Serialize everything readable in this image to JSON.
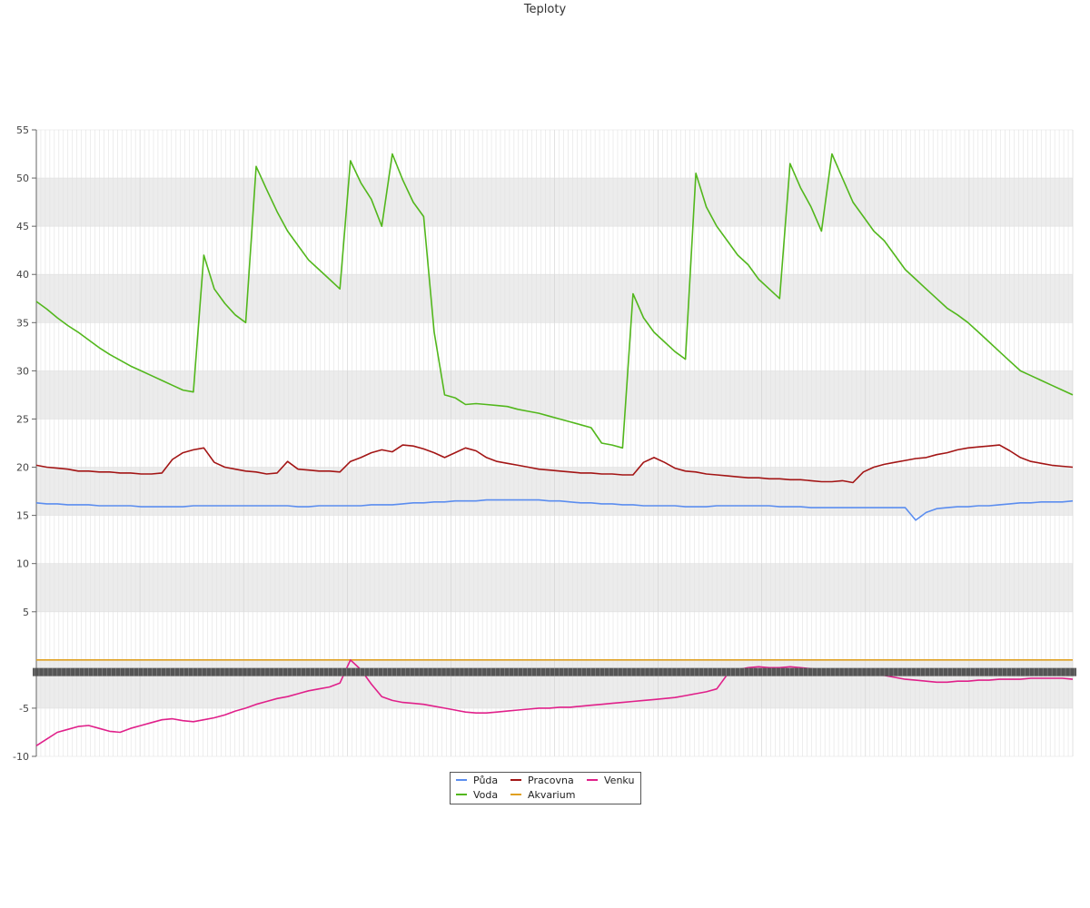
{
  "chart_data": {
    "type": "line",
    "title": "Teploty",
    "xlabel": "",
    "ylabel": "",
    "ylim": [
      -10,
      55
    ],
    "yticks": [
      55,
      50,
      45,
      40,
      35,
      30,
      25,
      20,
      15,
      10,
      5,
      -5,
      -10
    ],
    "grid": true,
    "legend_position": "bottom-center",
    "x_points": 100,
    "series": [
      {
        "name": "Půda",
        "color": "#5b8def",
        "values": [
          16.3,
          16.2,
          16.2,
          16.1,
          16.1,
          16.1,
          16.0,
          16.0,
          16.0,
          16.0,
          15.9,
          15.9,
          15.9,
          15.9,
          15.9,
          16.0,
          16.0,
          16.0,
          16.0,
          16.0,
          16.0,
          16.0,
          16.0,
          16.0,
          16.0,
          15.9,
          15.9,
          16.0,
          16.0,
          16.0,
          16.0,
          16.0,
          16.1,
          16.1,
          16.1,
          16.2,
          16.3,
          16.3,
          16.4,
          16.4,
          16.5,
          16.5,
          16.5,
          16.6,
          16.6,
          16.6,
          16.6,
          16.6,
          16.6,
          16.5,
          16.5,
          16.4,
          16.3,
          16.3,
          16.2,
          16.2,
          16.1,
          16.1,
          16.0,
          16.0,
          16.0,
          16.0,
          15.9,
          15.9,
          15.9,
          16.0,
          16.0,
          16.0,
          16.0,
          16.0,
          16.0,
          15.9,
          15.9,
          15.9,
          15.8,
          15.8,
          15.8,
          15.8,
          15.8,
          15.8,
          15.8,
          15.8,
          15.8,
          15.8,
          14.5,
          15.3,
          15.7,
          15.8,
          15.9,
          15.9,
          16.0,
          16.0,
          16.1,
          16.2,
          16.3,
          16.3,
          16.4,
          16.4,
          16.4,
          16.5
        ]
      },
      {
        "name": "Voda",
        "color": "#52b71c",
        "values": [
          37.2,
          36.4,
          35.5,
          34.7,
          34.0,
          33.2,
          32.4,
          31.7,
          31.1,
          30.5,
          30.0,
          29.5,
          29.0,
          28.5,
          28.0,
          27.8,
          42.0,
          38.5,
          37.0,
          35.8,
          35.0,
          51.2,
          48.8,
          46.5,
          44.5,
          43.0,
          41.5,
          40.5,
          39.5,
          38.5,
          51.8,
          49.5,
          47.8,
          45.0,
          52.5,
          49.8,
          47.5,
          46.0,
          34.0,
          27.5,
          27.2,
          26.5,
          26.6,
          26.5,
          26.4,
          26.3,
          26.0,
          25.8,
          25.6,
          25.3,
          25.0,
          24.7,
          24.4,
          24.1,
          22.5,
          22.3,
          22.0,
          38.0,
          35.5,
          34.0,
          33.0,
          32.0,
          31.2,
          50.5,
          47.0,
          45.0,
          43.5,
          42.0,
          41.0,
          39.5,
          38.5,
          37.5,
          51.5,
          49.0,
          47.0,
          44.5,
          52.5,
          50.0,
          47.5,
          46.0,
          44.5,
          43.5,
          42.0,
          40.5,
          39.5,
          38.5,
          37.5,
          36.5,
          35.8,
          35.0,
          34.0,
          33.0,
          32.0,
          31.0,
          30.0,
          29.5,
          29.0,
          28.5,
          28.0,
          27.5
        ]
      },
      {
        "name": "Pracovna",
        "color": "#a31515",
        "values": [
          20.2,
          20.0,
          19.9,
          19.8,
          19.6,
          19.6,
          19.5,
          19.5,
          19.4,
          19.4,
          19.3,
          19.3,
          19.4,
          20.8,
          21.5,
          21.8,
          22.0,
          20.5,
          20.0,
          19.8,
          19.6,
          19.5,
          19.3,
          19.4,
          20.6,
          19.8,
          19.7,
          19.6,
          19.6,
          19.5,
          20.6,
          21.0,
          21.5,
          21.8,
          21.6,
          22.3,
          22.2,
          21.9,
          21.5,
          21.0,
          21.5,
          22.0,
          21.7,
          21.0,
          20.6,
          20.4,
          20.2,
          20.0,
          19.8,
          19.7,
          19.6,
          19.5,
          19.4,
          19.4,
          19.3,
          19.3,
          19.2,
          19.2,
          20.5,
          21.0,
          20.5,
          19.9,
          19.6,
          19.5,
          19.3,
          19.2,
          19.1,
          19.0,
          18.9,
          18.9,
          18.8,
          18.8,
          18.7,
          18.7,
          18.6,
          18.5,
          18.5,
          18.6,
          18.4,
          19.5,
          20.0,
          20.3,
          20.5,
          20.7,
          20.9,
          21.0,
          21.3,
          21.5,
          21.8,
          22.0,
          22.1,
          22.2,
          22.3,
          21.7,
          21.0,
          20.6,
          20.4,
          20.2,
          20.1,
          20.0
        ]
      },
      {
        "name": "Akvarium",
        "color": "#e0a020",
        "values": [
          0,
          0,
          0,
          0,
          0,
          0,
          0,
          0,
          0,
          0,
          0,
          0,
          0,
          0,
          0,
          0,
          0,
          0,
          0,
          0,
          0,
          0,
          0,
          0,
          0,
          0,
          0,
          0,
          0,
          0,
          0,
          0,
          0,
          0,
          0,
          0,
          0,
          0,
          0,
          0,
          0,
          0,
          0,
          0,
          0,
          0,
          0,
          0,
          0,
          0,
          0,
          0,
          0,
          0,
          0,
          0,
          0,
          0,
          0,
          0,
          0,
          0,
          0,
          0,
          0,
          0,
          0,
          0,
          0,
          0,
          0,
          0,
          0,
          0,
          0,
          0,
          0,
          0,
          0,
          0,
          0,
          0,
          0,
          0,
          0,
          0,
          0,
          0,
          0,
          0,
          0,
          0,
          0,
          0,
          0,
          0,
          0,
          0,
          0,
          0
        ]
      },
      {
        "name": "Venku",
        "color": "#e0208a",
        "values": [
          -8.9,
          -8.2,
          -7.5,
          -7.2,
          -6.9,
          -6.8,
          -7.1,
          -7.4,
          -7.5,
          -7.1,
          -6.8,
          -6.5,
          -6.2,
          -6.1,
          -6.3,
          -6.4,
          -6.2,
          -6.0,
          -5.7,
          -5.3,
          -5.0,
          -4.6,
          -4.3,
          -4.0,
          -3.8,
          -3.5,
          -3.2,
          -3.0,
          -2.8,
          -2.4,
          0.0,
          -1.0,
          -2.5,
          -3.8,
          -4.2,
          -4.4,
          -4.5,
          -4.6,
          -4.8,
          -5.0,
          -5.2,
          -5.4,
          -5.5,
          -5.5,
          -5.4,
          -5.3,
          -5.2,
          -5.1,
          -5.0,
          -5.0,
          -4.9,
          -4.9,
          -4.8,
          -4.7,
          -4.6,
          -4.5,
          -4.4,
          -4.3,
          -4.2,
          -4.1,
          -4.0,
          -3.9,
          -3.7,
          -3.5,
          -3.3,
          -3.0,
          -1.5,
          -1.0,
          -0.8,
          -0.7,
          -0.8,
          -0.8,
          -0.7,
          -0.8,
          -0.9,
          -1.0,
          -1.1,
          -1.2,
          -1.3,
          -1.4,
          -1.5,
          -1.6,
          -1.8,
          -2.0,
          -2.1,
          -2.2,
          -2.3,
          -2.3,
          -2.2,
          -2.2,
          -2.1,
          -2.1,
          -2.0,
          -2.0,
          -2.0,
          -1.9,
          -1.9,
          -1.9,
          -1.9,
          -2.0
        ]
      }
    ]
  }
}
